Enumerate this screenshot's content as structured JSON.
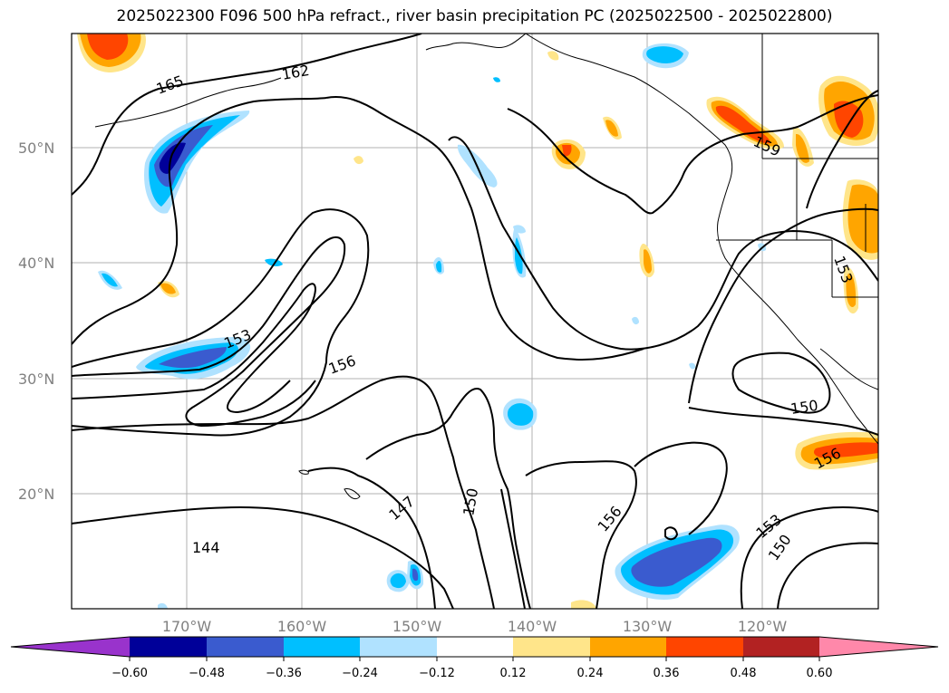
{
  "title": "2025022300 F096 500 hPa refract., river basin precipitation PC (2025022500 - 2025022800)",
  "map": {
    "lat_labels": [
      "50°N",
      "40°N",
      "30°N",
      "20°N"
    ],
    "lon_labels": [
      "170°W",
      "160°W",
      "150°W",
      "140°W",
      "130°W",
      "120°W"
    ],
    "contour_labels": [
      "165",
      "162",
      "153",
      "156",
      "159",
      "153",
      "150",
      "156",
      "147",
      "150",
      "156",
      "153",
      "150",
      "144"
    ],
    "colors": {
      "c1": "#9933cc",
      "c2": "#000099",
      "c3": "#3a5bcf",
      "c4": "#00bfff",
      "c5": "#b0e2ff",
      "c6": "#ffffff",
      "c7": "#ffe58a",
      "c8": "#ffa500",
      "c9": "#ff4500",
      "c10": "#b22222",
      "c11": "#ff88aa"
    }
  },
  "colorbar": {
    "ticks": [
      "−0.60",
      "−0.48",
      "−0.36",
      "−0.24",
      "−0.12",
      "0.12",
      "0.24",
      "0.36",
      "0.48",
      "0.60"
    ]
  }
}
